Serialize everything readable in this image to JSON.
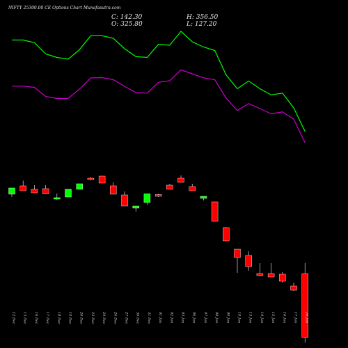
{
  "title": "NIFTY 25300.00 CE Options Chart Munafasutra.com",
  "ohlc": {
    "close": "C: 142.30",
    "open": "O: 325.80",
    "high": "H: 356.50",
    "low": "L: 127.20"
  },
  "colors": {
    "background": "#000000",
    "up": "#00ff00",
    "down": "#ff0000",
    "upper_line": "#00ff00",
    "lower_line": "#cc00cc"
  },
  "chart_data": {
    "type": "candlestick",
    "categories": [
      "12 Dec",
      "13 Dec",
      "16 Dec",
      "17 Dec",
      "18 Dec",
      "19 Dec",
      "20 Dec",
      "23 Dec",
      "24 Dec",
      "26 Dec",
      "27 Dec",
      "30 Dec",
      "31 Dec",
      "01 Jan",
      "02 Jan",
      "03 Jan",
      "06 Jan",
      "07 Jan",
      "08 Jan",
      "09 Jan",
      "10 Jan",
      "13 Jan",
      "14 Jan",
      "15 Jan",
      "16 Jan",
      "17 Jan",
      "20 Jan"
    ],
    "candles": [
      {
        "open": 554,
        "high": 572,
        "low": 546,
        "close": 572
      },
      {
        "open": 578,
        "high": 593,
        "low": 564,
        "close": 564
      },
      {
        "open": 568,
        "high": 580,
        "low": 558,
        "close": 558
      },
      {
        "open": 570,
        "high": 580,
        "low": 555,
        "close": 555
      },
      {
        "open": 540,
        "high": 556,
        "low": 538,
        "close": 544
      },
      {
        "open": 546,
        "high": 568,
        "low": 546,
        "close": 568
      },
      {
        "open": 568,
        "high": 584,
        "low": 568,
        "close": 584
      },
      {
        "open": 600,
        "high": 604,
        "low": 594,
        "close": 596
      },
      {
        "open": 606,
        "high": 607,
        "low": 586,
        "close": 586
      },
      {
        "open": 578,
        "high": 588,
        "low": 554,
        "close": 554
      },
      {
        "open": 552,
        "high": 562,
        "low": 520,
        "close": 520
      },
      {
        "open": 514,
        "high": 520,
        "low": 504,
        "close": 520
      },
      {
        "open": 530,
        "high": 555,
        "low": 524,
        "close": 555
      },
      {
        "open": 553,
        "high": 555,
        "low": 546,
        "close": 548
      },
      {
        "open": 580,
        "high": 583,
        "low": 568,
        "close": 568
      },
      {
        "open": 600,
        "high": 608,
        "low": 588,
        "close": 588
      },
      {
        "open": 576,
        "high": 584,
        "low": 564,
        "close": 564
      },
      {
        "open": 542,
        "high": 548,
        "low": 536,
        "close": 548
      },
      {
        "open": 532,
        "high": 532,
        "low": 476,
        "close": 476
      },
      {
        "open": 458,
        "high": 460,
        "low": 418,
        "close": 420
      },
      {
        "open": 396,
        "high": 396,
        "low": 328,
        "close": 372
      },
      {
        "open": 378,
        "high": 390,
        "low": 334,
        "close": 346
      },
      {
        "open": 326,
        "high": 356,
        "low": 318,
        "close": 320
      },
      {
        "open": 326,
        "high": 356,
        "low": 316,
        "close": 316
      },
      {
        "open": 324,
        "high": 330,
        "low": 300,
        "close": 304
      },
      {
        "open": 290,
        "high": 300,
        "low": 276,
        "close": 278
      },
      {
        "open": 325.8,
        "high": 356.5,
        "low": 127.2,
        "close": 142.3
      }
    ],
    "series": [
      {
        "values": [
          1190,
          1190,
          1175,
          1110,
          1090,
          1080,
          1135,
          1215,
          1215,
          1200,
          1140,
          1095,
          1090,
          1165,
          1160,
          1240,
          1180,
          1150,
          1130,
          990,
          910,
          955,
          910,
          875,
          885,
          800,
          665
        ]
      },
      {
        "values": [
          925,
          925,
          918,
          866,
          854,
          855,
          908,
          972,
          974,
          962,
          924,
          888,
          885,
          947,
          956,
          1019,
          996,
          973,
          962,
          856,
          785,
          825,
          796,
          766,
          777,
          735,
          600
        ]
      }
    ]
  }
}
